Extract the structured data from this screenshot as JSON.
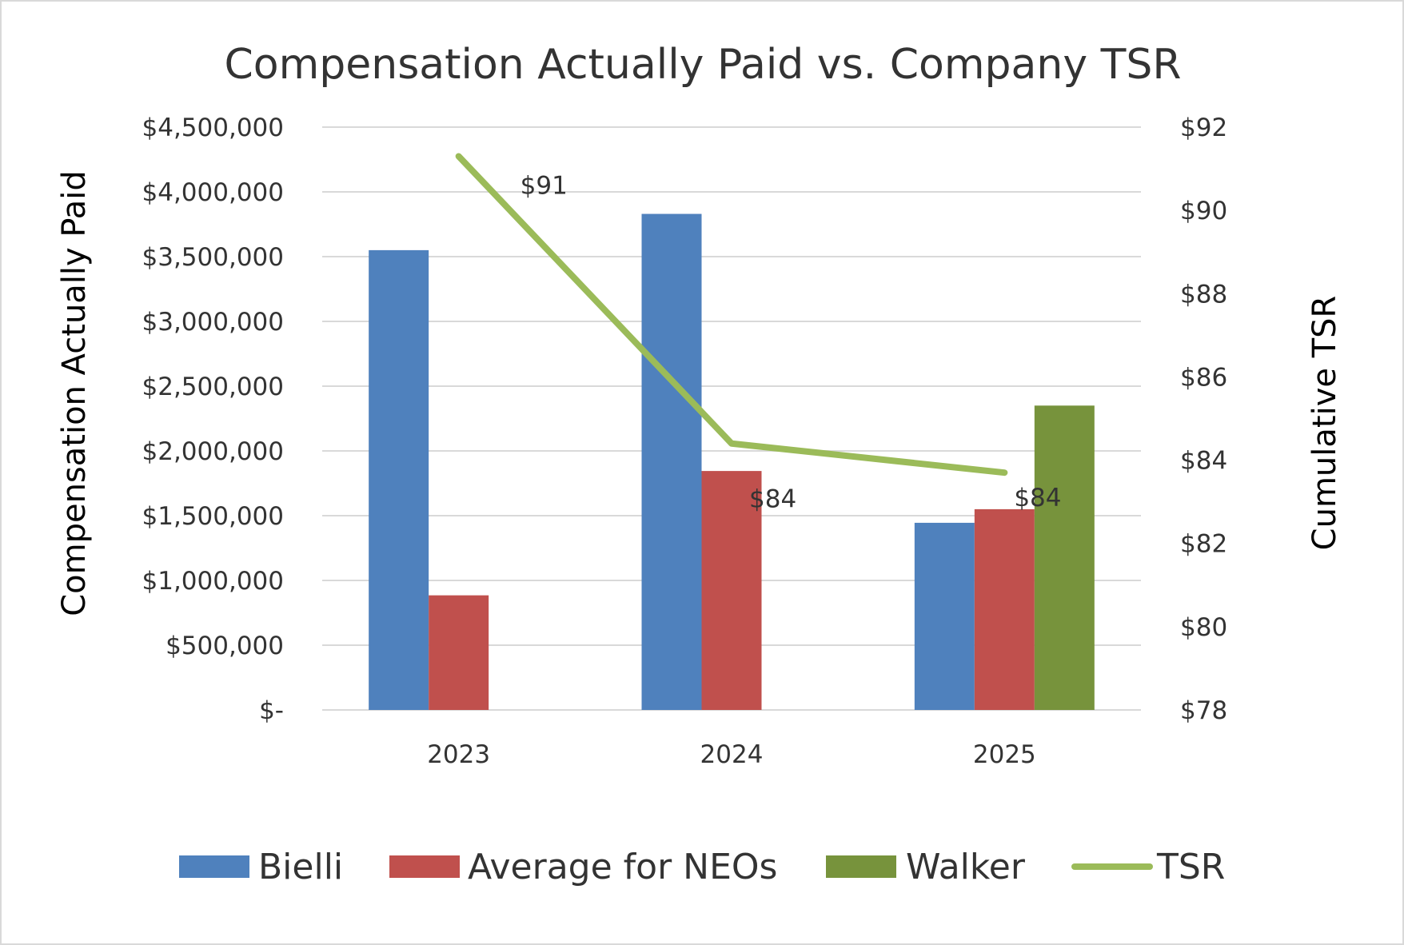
{
  "chart_data": {
    "type": "bar+line",
    "title": "Compensation Actually Paid vs. Company TSR",
    "categories": [
      "2023",
      "2024",
      "2025"
    ],
    "ylabel": "Compensation Actually Paid",
    "y2label": "Cumulative TSR",
    "ylim": [
      0,
      4500000
    ],
    "y2lim": [
      78,
      92
    ],
    "y_ticks": [
      "$-",
      "$500,000",
      "$1,000,000",
      "$1,500,000",
      "$2,000,000",
      "$2,500,000",
      "$3,000,000",
      "$3,500,000",
      "$4,000,000",
      "$4,500,000"
    ],
    "y2_ticks": [
      "$78",
      "$80",
      "$82",
      "$84",
      "$86",
      "$88",
      "$90",
      "$92"
    ],
    "grid": true,
    "legend_position": "bottom",
    "series": [
      {
        "name": "Bielli",
        "type": "bar",
        "color": "#4f81bd",
        "values": [
          3550000,
          3830000,
          1445000
        ]
      },
      {
        "name": "Average for NEOs",
        "type": "bar",
        "color": "#c0504d",
        "values": [
          885000,
          1845000,
          1550000
        ]
      },
      {
        "name": "Walker",
        "type": "bar",
        "color": "#77933c",
        "values": [
          null,
          null,
          2350000
        ]
      },
      {
        "name": "TSR",
        "type": "line",
        "axis": "right",
        "color": "#9bbb59",
        "values": [
          91.3,
          84.4,
          83.7
        ],
        "data_labels": [
          "$91",
          "$84",
          "$84"
        ]
      }
    ]
  }
}
